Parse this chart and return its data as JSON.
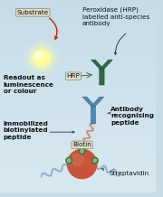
{
  "bg_color": "#c5dce8",
  "substrate_label": "Substrate",
  "readout_label": "Readout as\nluminescence\nor colour",
  "hrp_label": "HRP",
  "peroxidase_label": "Peroxidase (HRP)\nlabelled anti-species\nantibody",
  "antibody_label": "Antibody\nrecognising\npeptide",
  "immobilized_label": "Immobilized\nbiotinylated\npeptide",
  "biotin_label": "Biotin",
  "streptavidin_label": "Streptavidin",
  "antibody_blue": "#4a8ab5",
  "antibody_blue_dark": "#2a5a80",
  "antibody_green": "#2d6b45",
  "antibody_green_dark": "#1a4028",
  "streptavidin_color": "#c8543a",
  "streptavidin_highlight": "#d4705a",
  "biotin_color": "#3a7a3a",
  "biotin_light": "#88bb88",
  "chain_color_pink": "#c8917a",
  "chain_color_blue": "#8aadcc",
  "arrow_red": "#cc2200",
  "arrow_dark": "#333333",
  "text_dark": "#111111",
  "text_label_size": 5.2,
  "box_face": "#ddddc8",
  "box_edge": "#888866"
}
